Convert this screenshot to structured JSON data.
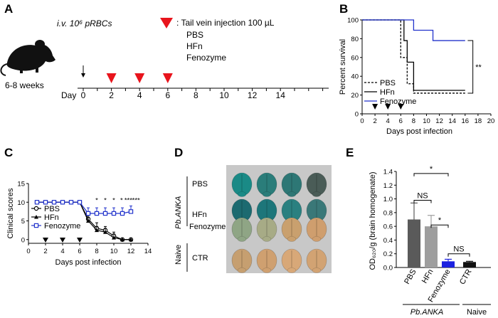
{
  "panels": {
    "A": {
      "label": "A",
      "infection": "i.v. 10⁶ pRBCs",
      "legend_marker": ": Tail vein injection  100 µL",
      "treatments": [
        "PBS",
        "HFn",
        "Fenozyme"
      ],
      "mouse_age": "6-8 weeks",
      "day_label": "Day",
      "days": [
        "0",
        "2",
        "4",
        "6",
        "8",
        "10",
        "12",
        "14"
      ],
      "injection_days": [
        2,
        4,
        6
      ],
      "marker_color": "#e8141c"
    },
    "B": {
      "label": "B",
      "significance": "**",
      "injection_days": [
        2,
        4,
        6
      ]
    },
    "C": {
      "label": "C",
      "significance": [
        "*",
        "*",
        "*",
        "*",
        "***",
        "***"
      ],
      "injection_days": [
        2,
        4,
        6
      ]
    },
    "D": {
      "label": "D",
      "group_label": "Pb.ANKA",
      "naive_label": "Naive",
      "rows": [
        "PBS",
        "HFn",
        "Fenozyme",
        "CTR"
      ],
      "brain_colors": [
        [
          "#1a8a86",
          "#2a7d7a",
          "#2d7775",
          "#4a5c57"
        ],
        [
          "#1c6a70",
          "#1d767a",
          "#2a8080",
          "#3a7878"
        ],
        [
          "#8fa585",
          "#a7ab86",
          "#c9a06e",
          "#cf9e6e"
        ],
        [
          "#c69f70",
          "#cfa070",
          "#d8a878",
          "#d2a373"
        ]
      ]
    },
    "E": {
      "label": "E",
      "group_label": "Pb.ANKA",
      "naive_label": "Naive",
      "comparisons": [
        {
          "a": "PBS",
          "b": "HFn",
          "text": "NS"
        },
        {
          "a": "PBS",
          "b": "Fenozyme",
          "text": "*"
        },
        {
          "a": "HFn",
          "b": "Fenozyme",
          "text": "*"
        },
        {
          "a": "Fenozyme",
          "b": "CTR",
          "text": "NS"
        }
      ]
    }
  },
  "chart_data": [
    {
      "id": "B",
      "type": "line",
      "step": true,
      "xlabel": "Days post infection",
      "ylabel": "Percent survival",
      "xlim": [
        0,
        20
      ],
      "ylim": [
        0,
        100
      ],
      "xticks": [
        0,
        2,
        4,
        6,
        8,
        10,
        12,
        14,
        16,
        18,
        20
      ],
      "yticks": [
        0,
        20,
        40,
        60,
        80,
        100
      ],
      "series": [
        {
          "name": "PBS",
          "color": "#000000",
          "dash": "3,2",
          "points": [
            [
              0,
              100
            ],
            [
              6,
              100
            ],
            [
              6,
              60
            ],
            [
              7,
              60
            ],
            [
              7,
              32
            ],
            [
              8,
              32
            ],
            [
              8,
              22
            ],
            [
              16,
              22
            ]
          ]
        },
        {
          "name": "HFn",
          "color": "#000000",
          "dash": "",
          "points": [
            [
              0,
              100
            ],
            [
              6.5,
              100
            ],
            [
              6.5,
              78
            ],
            [
              7,
              78
            ],
            [
              7,
              55
            ],
            [
              8,
              55
            ],
            [
              8,
              25
            ],
            [
              16,
              25
            ]
          ]
        },
        {
          "name": "Fenozyme",
          "color": "#2233cc",
          "dash": "",
          "points": [
            [
              0,
              100
            ],
            [
              8,
              100
            ],
            [
              8,
              89
            ],
            [
              11,
              89
            ],
            [
              11,
              78
            ],
            [
              16,
              78
            ]
          ]
        }
      ]
    },
    {
      "id": "C",
      "type": "line",
      "xlabel": "Days post infection",
      "ylabel": "Clinical scores",
      "xlim": [
        0,
        14
      ],
      "ylim": [
        -1,
        15
      ],
      "xticks": [
        0,
        2,
        4,
        6,
        8,
        10,
        12,
        14
      ],
      "yticks": [
        0,
        5,
        10,
        15
      ],
      "x": [
        1,
        2,
        3,
        4,
        5,
        6,
        7,
        8,
        9,
        10,
        11,
        12
      ],
      "series": [
        {
          "name": "PBS",
          "marker": "circle",
          "color": "#000000",
          "values": [
            10,
            10,
            10,
            10,
            10,
            10,
            5.5,
            3,
            2.5,
            1,
            0,
            0
          ],
          "errors": [
            0,
            0,
            0,
            0,
            0,
            0,
            1,
            1.5,
            1,
            1,
            0,
            0
          ]
        },
        {
          "name": "HFn",
          "marker": "triangle",
          "color": "#000000",
          "values": [
            10,
            10,
            10,
            10,
            10,
            10,
            5,
            2.5,
            2,
            0.5,
            0,
            0
          ],
          "errors": [
            0,
            0,
            0,
            0,
            0,
            0,
            1,
            1,
            1,
            1,
            0,
            0
          ]
        },
        {
          "name": "Fenozyme",
          "marker": "square",
          "color": "#2233cc",
          "values": [
            10,
            10,
            10,
            10,
            10,
            10,
            7,
            7,
            7,
            7,
            7,
            7.5
          ],
          "errors": [
            0,
            0,
            0,
            0,
            0,
            0,
            1.5,
            1.5,
            1.5,
            1.5,
            1.5,
            1.5
          ]
        }
      ]
    },
    {
      "id": "E",
      "type": "bar",
      "ylabel": "OD₆₂₀/g (brain homogenate)",
      "ylim": [
        0,
        1.4
      ],
      "yticks": [
        "0.0",
        "0.2",
        "0.4",
        "0.6",
        "0.8",
        "1.0",
        "1.2",
        "1.4"
      ],
      "categories": [
        "PBS",
        "HFn",
        "Fenozyme",
        "CTR"
      ],
      "values": [
        0.7,
        0.6,
        0.09,
        0.08
      ],
      "errors": [
        0.24,
        0.16,
        0.03,
        0.01
      ],
      "colors": [
        "#5a5a5a",
        "#9e9e9e",
        "#1c22e0",
        "#111111"
      ]
    }
  ]
}
